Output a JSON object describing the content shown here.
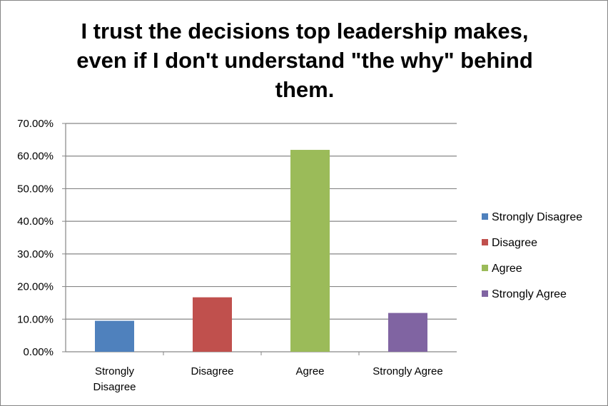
{
  "chart_data": {
    "type": "bar",
    "title": "I trust the decisions top leadership makes, even if I don't understand \"the why\" behind them.",
    "title_lines": [
      "I trust the decisions top leadership makes,",
      "even if I don't understand \"the why\" behind",
      "them."
    ],
    "categories": [
      "Strongly Disagree",
      "Disagree",
      "Agree",
      "Strongly Agree"
    ],
    "category_label_lines": [
      [
        "Strongly",
        "Disagree"
      ],
      [
        "Disagree"
      ],
      [
        "Agree"
      ],
      [
        "Strongly Agree"
      ]
    ],
    "values": [
      0.095,
      0.167,
      0.619,
      0.119
    ],
    "colors": [
      "#4F81BD",
      "#C0504D",
      "#9BBB59",
      "#8064A2"
    ],
    "ylim": [
      0,
      0.7
    ],
    "yticks": [
      0,
      0.1,
      0.2,
      0.3,
      0.4,
      0.5,
      0.6,
      0.7
    ],
    "ytick_labels": [
      "0.00%",
      "10.00%",
      "20.00%",
      "30.00%",
      "40.00%",
      "50.00%",
      "60.00%",
      "70.00%"
    ],
    "xlabel": "",
    "ylabel": "",
    "grid": true,
    "legend": {
      "position": "right",
      "entries": [
        "Strongly Disagree",
        "Disagree",
        "Agree",
        "Strongly Agree"
      ]
    }
  }
}
